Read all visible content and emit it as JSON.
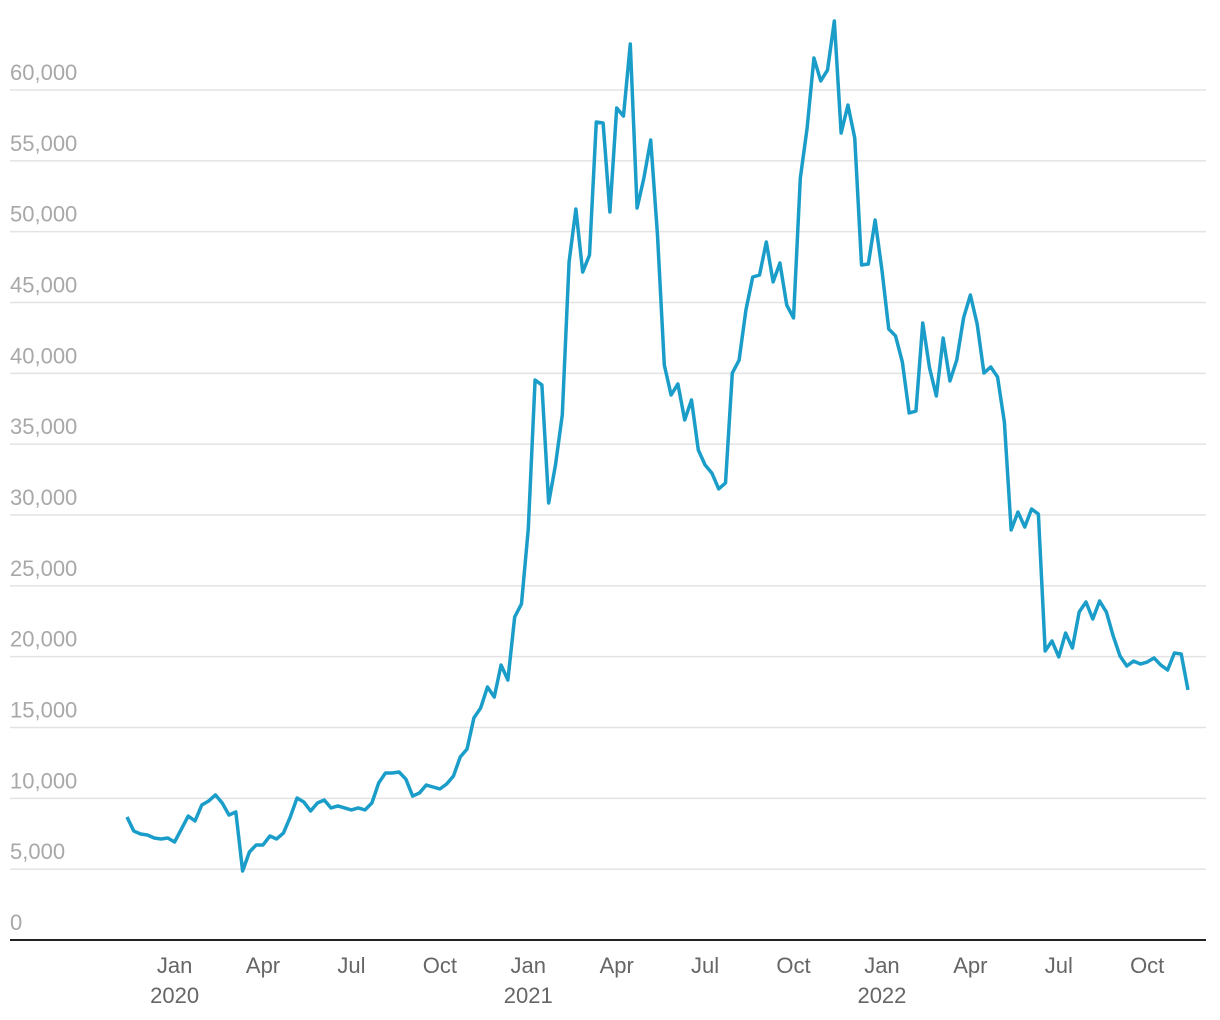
{
  "chart_data": {
    "type": "line",
    "categories": [
      null,
      null,
      null,
      null,
      null,
      null,
      null,
      "Jan 2020",
      null,
      null,
      null,
      null,
      null,
      null,
      null,
      null,
      null,
      null,
      null,
      null,
      "Apr",
      null,
      null,
      null,
      null,
      null,
      null,
      null,
      null,
      null,
      null,
      null,
      null,
      "Jul",
      null,
      null,
      null,
      null,
      null,
      null,
      null,
      null,
      null,
      null,
      null,
      null,
      "Oct",
      null,
      null,
      null,
      null,
      null,
      null,
      null,
      null,
      null,
      null,
      null,
      null,
      "Jan 2021",
      null,
      null,
      null,
      null,
      null,
      null,
      null,
      null,
      null,
      null,
      null,
      null,
      "Apr",
      null,
      null,
      null,
      null,
      null,
      null,
      null,
      null,
      null,
      null,
      null,
      null,
      "Jul",
      null,
      null,
      null,
      null,
      null,
      null,
      null,
      null,
      null,
      null,
      null,
      null,
      "Oct",
      null,
      null,
      null,
      null,
      null,
      null,
      null,
      null,
      null,
      null,
      null,
      null,
      "Jan 2022",
      null,
      null,
      null,
      null,
      null,
      null,
      null,
      null,
      null,
      null,
      null,
      null,
      "Apr",
      null,
      null,
      null,
      null,
      null,
      null,
      null,
      null,
      null,
      null,
      null,
      null,
      "Jul",
      null,
      null,
      null,
      null,
      null,
      null,
      null,
      null,
      null,
      null,
      null,
      null,
      "Oct",
      null,
      null,
      null,
      null,
      null,
      null
    ],
    "values": [
      8680,
      7690,
      7480,
      7410,
      7200,
      7130,
      7200,
      6920,
      7830,
      8750,
      8400,
      9530,
      9810,
      10240,
      9670,
      8820,
      9040,
      4870,
      6210,
      6710,
      6710,
      7340,
      7130,
      7550,
      8680,
      10020,
      9740,
      9110,
      9670,
      9880,
      9320,
      9460,
      9320,
      9180,
      9320,
      9180,
      9670,
      11080,
      11790,
      11790,
      11860,
      11360,
      10160,
      10380,
      10940,
      10800,
      10660,
      11010,
      11580,
      12920,
      13480,
      15670,
      16380,
      17860,
      17150,
      19410,
      18350,
      22800,
      23720,
      29010,
      39530,
      39180,
      30850,
      33530,
      37060,
      47860,
      51600,
      47150,
      48350,
      57740,
      57670,
      51390,
      58730,
      58160,
      63250,
      51670,
      53790,
      56470,
      49760,
      40590,
      38470,
      39250,
      36710,
      38120,
      34590,
      33530,
      32960,
      31840,
      32260,
      40020,
      40940,
      44470,
      46800,
      46940,
      49270,
      46450,
      47790,
      44820,
      43910,
      53790,
      57320,
      62260,
      60640,
      61410,
      64870,
      56960,
      58940,
      56610,
      47650,
      47720,
      50820,
      47290,
      43130,
      42640,
      40800,
      37200,
      37340,
      43550,
      40380,
      38400,
      42490,
      39460,
      40940,
      43910,
      45530,
      43480,
      40020,
      40450,
      39740,
      36560,
      28940,
      30210,
      29150,
      30420,
      30070,
      20400,
      21110,
      19980,
      21670,
      20610,
      23150,
      23860,
      22660,
      23930,
      23150,
      21460,
      20050,
      19340,
      19690,
      19480,
      19620,
      19910,
      19410,
      19060,
      20260,
      20190,
      17650
    ],
    "color": "#1b9dc9",
    "ylim": [
      0,
      66000
    ],
    "yticks": [
      0,
      {
        "value": 5000,
        "label": "5,000"
      },
      {
        "value": 10000,
        "label": "10,000"
      },
      {
        "value": 15000,
        "label": "15,000"
      },
      {
        "value": 20000,
        "label": "20,000"
      },
      {
        "value": 25000,
        "label": "25,000"
      },
      {
        "value": 30000,
        "label": "30,000"
      },
      {
        "value": 35000,
        "label": "35,000"
      },
      {
        "value": 40000,
        "label": "40,000"
      },
      {
        "value": 45000,
        "label": "45,000"
      },
      {
        "value": 50000,
        "label": "50,000"
      },
      {
        "value": 55000,
        "label": "55,000"
      },
      {
        "value": 60000,
        "label": "60,000"
      }
    ],
    "grid": true
  }
}
